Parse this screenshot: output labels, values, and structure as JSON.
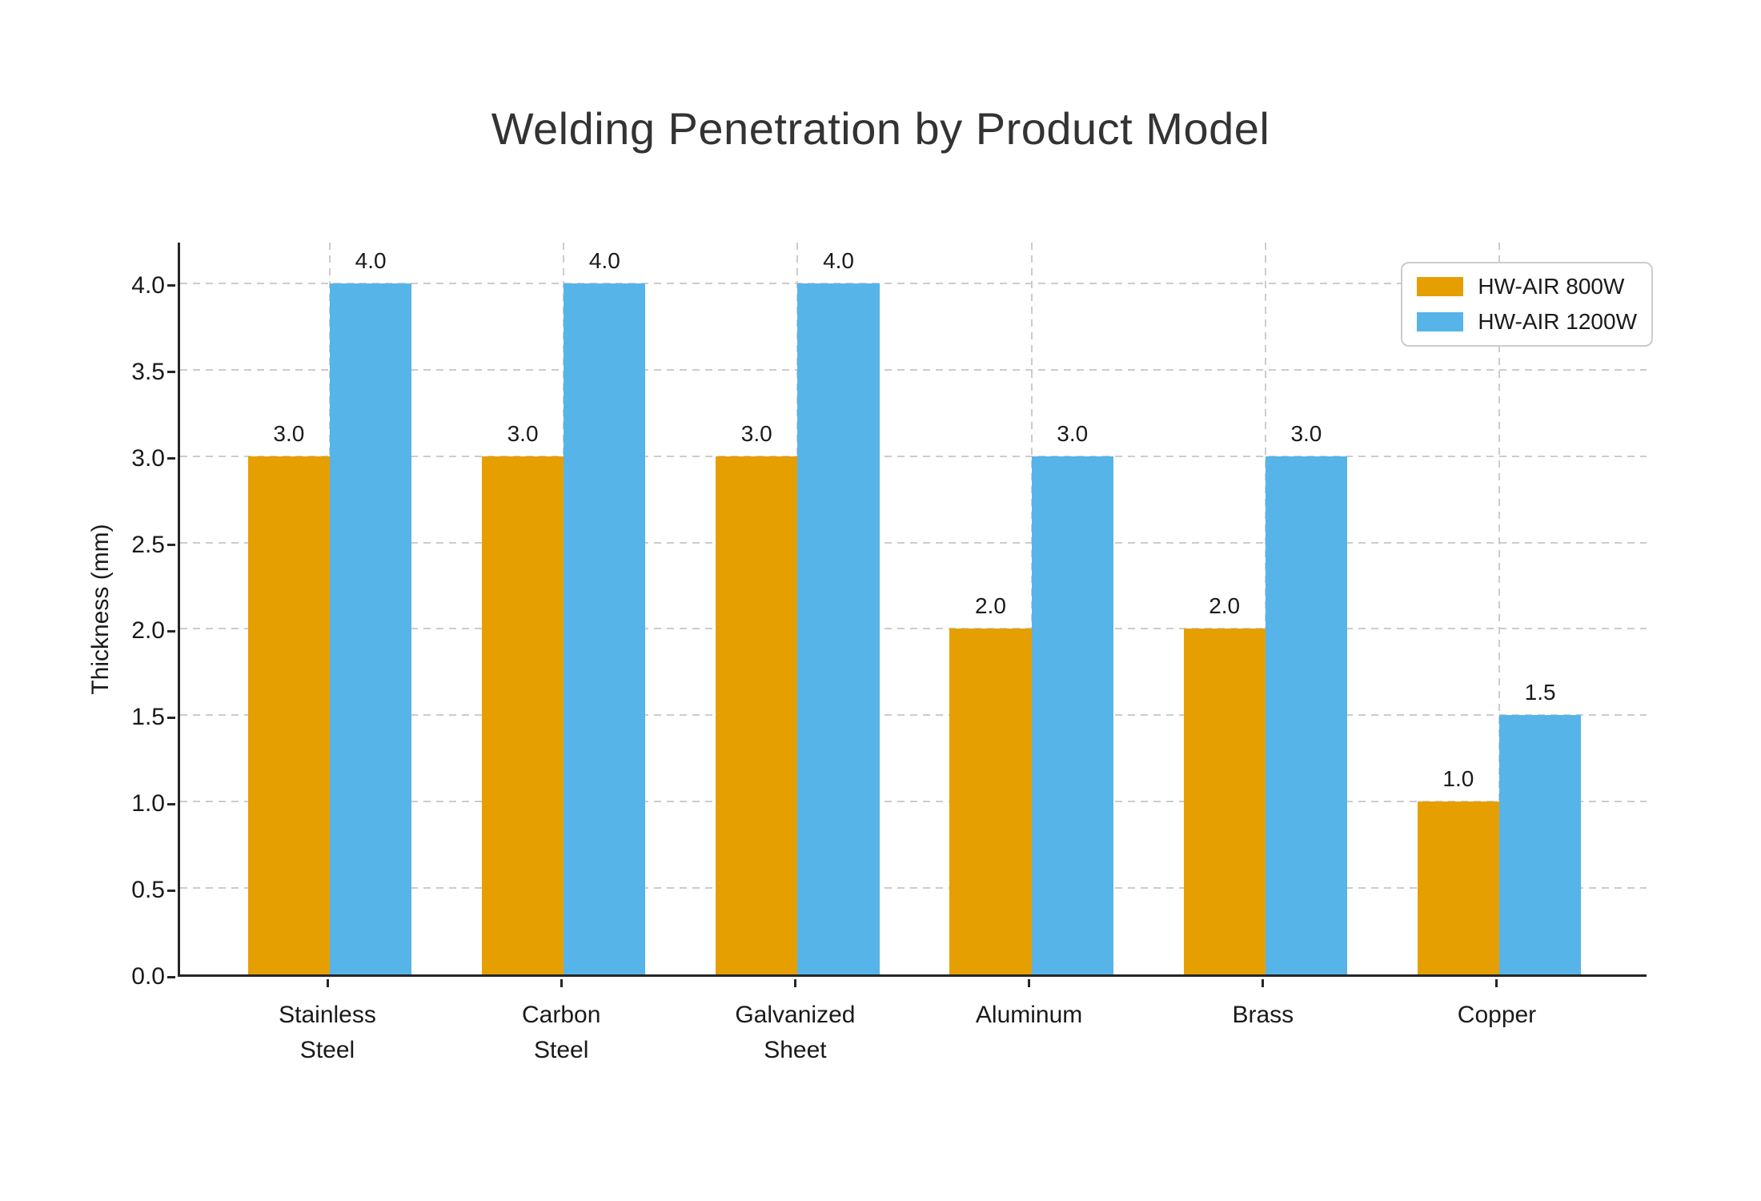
{
  "figure": {
    "background": "#ffffff"
  },
  "chart_data": {
    "type": "bar",
    "title": "Welding Penetration by Product Model",
    "xlabel": "",
    "ylabel": "Thickness (mm)",
    "categories": [
      "Stainless\nSteel",
      "Carbon\nSteel",
      "Galvanized\nSheet",
      "Aluminum",
      "Brass",
      "Copper"
    ],
    "series": [
      {
        "name": "HW-AIR 800W",
        "color": "#E69F00",
        "values": [
          3.0,
          3.0,
          3.0,
          2.0,
          2.0,
          1.0
        ]
      },
      {
        "name": "HW-AIR 1200W",
        "color": "#56B4E9",
        "values": [
          4.0,
          4.0,
          4.0,
          3.0,
          3.0,
          1.5
        ]
      }
    ],
    "yticks": [
      0.0,
      0.5,
      1.0,
      1.5,
      2.0,
      2.5,
      3.0,
      3.5,
      4.0
    ],
    "ytick_labels": [
      "0.0",
      "0.5",
      "1.0",
      "1.5",
      "2.0",
      "2.5",
      "3.0",
      "3.5",
      "4.0"
    ],
    "ylim": [
      0,
      4.25
    ],
    "grid": true,
    "grid_style": "dashed",
    "grid_color": "#cccccc",
    "legend_position": "upper right",
    "bar_value_labels": [
      "3.0",
      "4.0",
      "3.0",
      "4.0",
      "3.0",
      "4.0",
      "2.0",
      "3.0",
      "2.0",
      "3.0",
      "1.0",
      "1.5"
    ]
  },
  "colors": {
    "series_800w": "#E69F00",
    "series_1200w": "#56B4E9",
    "axis": "#262626",
    "text": "#1a1a1a",
    "title_text": "#333333",
    "gridline": "#cccccc"
  }
}
